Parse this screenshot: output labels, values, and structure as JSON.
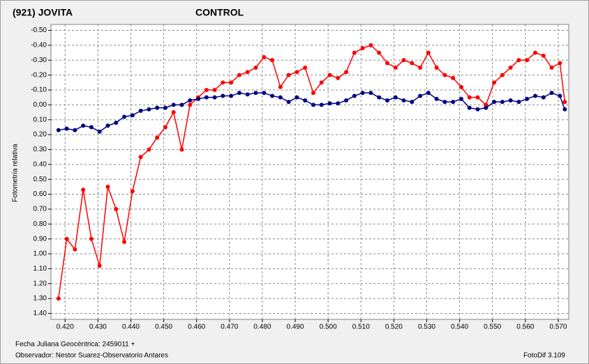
{
  "chart_data": {
    "type": "line",
    "y_label": "Fotometría relativa",
    "footer_left": [
      "Fecha Juliana Geocéntrica: 2459011 +",
      "Observador: Nestor Suarez-Observatorio Antares"
    ],
    "footer_right": "FotoDif 3.109",
    "y_inverted": true,
    "grid": true,
    "xlim": [
      0.4157,
      0.5732
    ],
    "ylim": [
      -0.54,
      1.44
    ],
    "xticks": [
      {
        "value": 0.42,
        "label": "0.420"
      },
      {
        "value": 0.43,
        "label": "0.430"
      },
      {
        "value": 0.44,
        "label": "0.440"
      },
      {
        "value": 0.45,
        "label": "0.450"
      },
      {
        "value": 0.46,
        "label": "0.460"
      },
      {
        "value": 0.47,
        "label": "0.470"
      },
      {
        "value": 0.48,
        "label": "0.480"
      },
      {
        "value": 0.49,
        "label": "0.490"
      },
      {
        "value": 0.5,
        "label": "0.500"
      },
      {
        "value": 0.51,
        "label": "0.510"
      },
      {
        "value": 0.52,
        "label": "0.520"
      },
      {
        "value": 0.53,
        "label": "0.530"
      },
      {
        "value": 0.54,
        "label": "0.540"
      },
      {
        "value": 0.55,
        "label": "0.550"
      },
      {
        "value": 0.56,
        "label": "0.560"
      },
      {
        "value": 0.57,
        "label": "0.570"
      }
    ],
    "yticks": [
      {
        "value": -0.5,
        "label": "-0.50"
      },
      {
        "value": -0.4,
        "label": "-0.40"
      },
      {
        "value": -0.3,
        "label": "-0.30"
      },
      {
        "value": -0.2,
        "label": "-0.20"
      },
      {
        "value": -0.1,
        "label": "-0.10"
      },
      {
        "value": 0,
        "label": "0.00"
      },
      {
        "value": 0.1,
        "label": "0.10"
      },
      {
        "value": 0.2,
        "label": "0.20"
      },
      {
        "value": 0.3,
        "label": "0.30"
      },
      {
        "value": 0.4,
        "label": "0.40"
      },
      {
        "value": 0.5,
        "label": "0.50"
      },
      {
        "value": 0.6,
        "label": "0.60"
      },
      {
        "value": 0.7,
        "label": "0.70"
      },
      {
        "value": 0.8,
        "label": "0.80"
      },
      {
        "value": 0.9,
        "label": "0.90"
      },
      {
        "value": 1.0,
        "label": "1.00"
      },
      {
        "value": 1.1,
        "label": "1.10"
      },
      {
        "value": 1.2,
        "label": "1.20"
      },
      {
        "value": 1.3,
        "label": "1.30"
      },
      {
        "value": 1.4,
        "label": "1.40"
      }
    ],
    "x": [
      0.418,
      0.4205,
      0.423,
      0.4255,
      0.428,
      0.4305,
      0.433,
      0.4355,
      0.438,
      0.4405,
      0.443,
      0.4455,
      0.448,
      0.4505,
      0.453,
      0.4555,
      0.458,
      0.4605,
      0.463,
      0.4655,
      0.468,
      0.4705,
      0.473,
      0.4755,
      0.478,
      0.4805,
      0.483,
      0.4855,
      0.488,
      0.4905,
      0.493,
      0.4955,
      0.498,
      0.5005,
      0.503,
      0.5055,
      0.508,
      0.5105,
      0.513,
      0.5155,
      0.518,
      0.5205,
      0.523,
      0.5255,
      0.528,
      0.5305,
      0.533,
      0.5355,
      0.538,
      0.5405,
      0.543,
      0.5455,
      0.548,
      0.5505,
      0.553,
      0.5555,
      0.558,
      0.5605,
      0.563,
      0.5655,
      0.568,
      0.5705,
      0.572
    ],
    "series": [
      {
        "name": "(921) JOVITA",
        "color": "#ff0000",
        "values": [
          1.3,
          0.9,
          0.97,
          0.57,
          0.9,
          1.08,
          0.55,
          0.7,
          0.92,
          0.58,
          0.35,
          0.3,
          0.22,
          0.15,
          0.05,
          0.3,
          0.0,
          -0.05,
          -0.1,
          -0.1,
          -0.15,
          -0.15,
          -0.2,
          -0.22,
          -0.25,
          -0.32,
          -0.3,
          -0.12,
          -0.2,
          -0.22,
          -0.25,
          -0.08,
          -0.15,
          -0.2,
          -0.18,
          -0.22,
          -0.35,
          -0.38,
          -0.4,
          -0.35,
          -0.28,
          -0.25,
          -0.3,
          -0.28,
          -0.25,
          -0.35,
          -0.25,
          -0.2,
          -0.18,
          -0.12,
          -0.05,
          -0.05,
          0.0,
          -0.15,
          -0.2,
          -0.25,
          -0.3,
          -0.3,
          -0.35,
          -0.33,
          -0.25,
          -0.28,
          -0.02
        ]
      },
      {
        "name": "CONTROL",
        "color": "#000080",
        "values": [
          0.17,
          0.16,
          0.17,
          0.14,
          0.15,
          0.18,
          0.14,
          0.12,
          0.08,
          0.07,
          0.04,
          0.03,
          0.02,
          0.02,
          0.0,
          0.0,
          -0.03,
          -0.04,
          -0.05,
          -0.05,
          -0.06,
          -0.06,
          -0.08,
          -0.07,
          -0.08,
          -0.08,
          -0.06,
          -0.05,
          -0.02,
          -0.05,
          -0.03,
          0.0,
          0.0,
          -0.01,
          -0.01,
          -0.03,
          -0.06,
          -0.08,
          -0.08,
          -0.05,
          -0.03,
          -0.05,
          -0.03,
          -0.02,
          -0.06,
          -0.08,
          -0.04,
          -0.02,
          -0.02,
          -0.04,
          0.02,
          0.03,
          0.02,
          -0.02,
          -0.02,
          -0.03,
          -0.02,
          -0.04,
          -0.06,
          -0.05,
          -0.08,
          -0.06,
          0.03
        ]
      }
    ]
  }
}
